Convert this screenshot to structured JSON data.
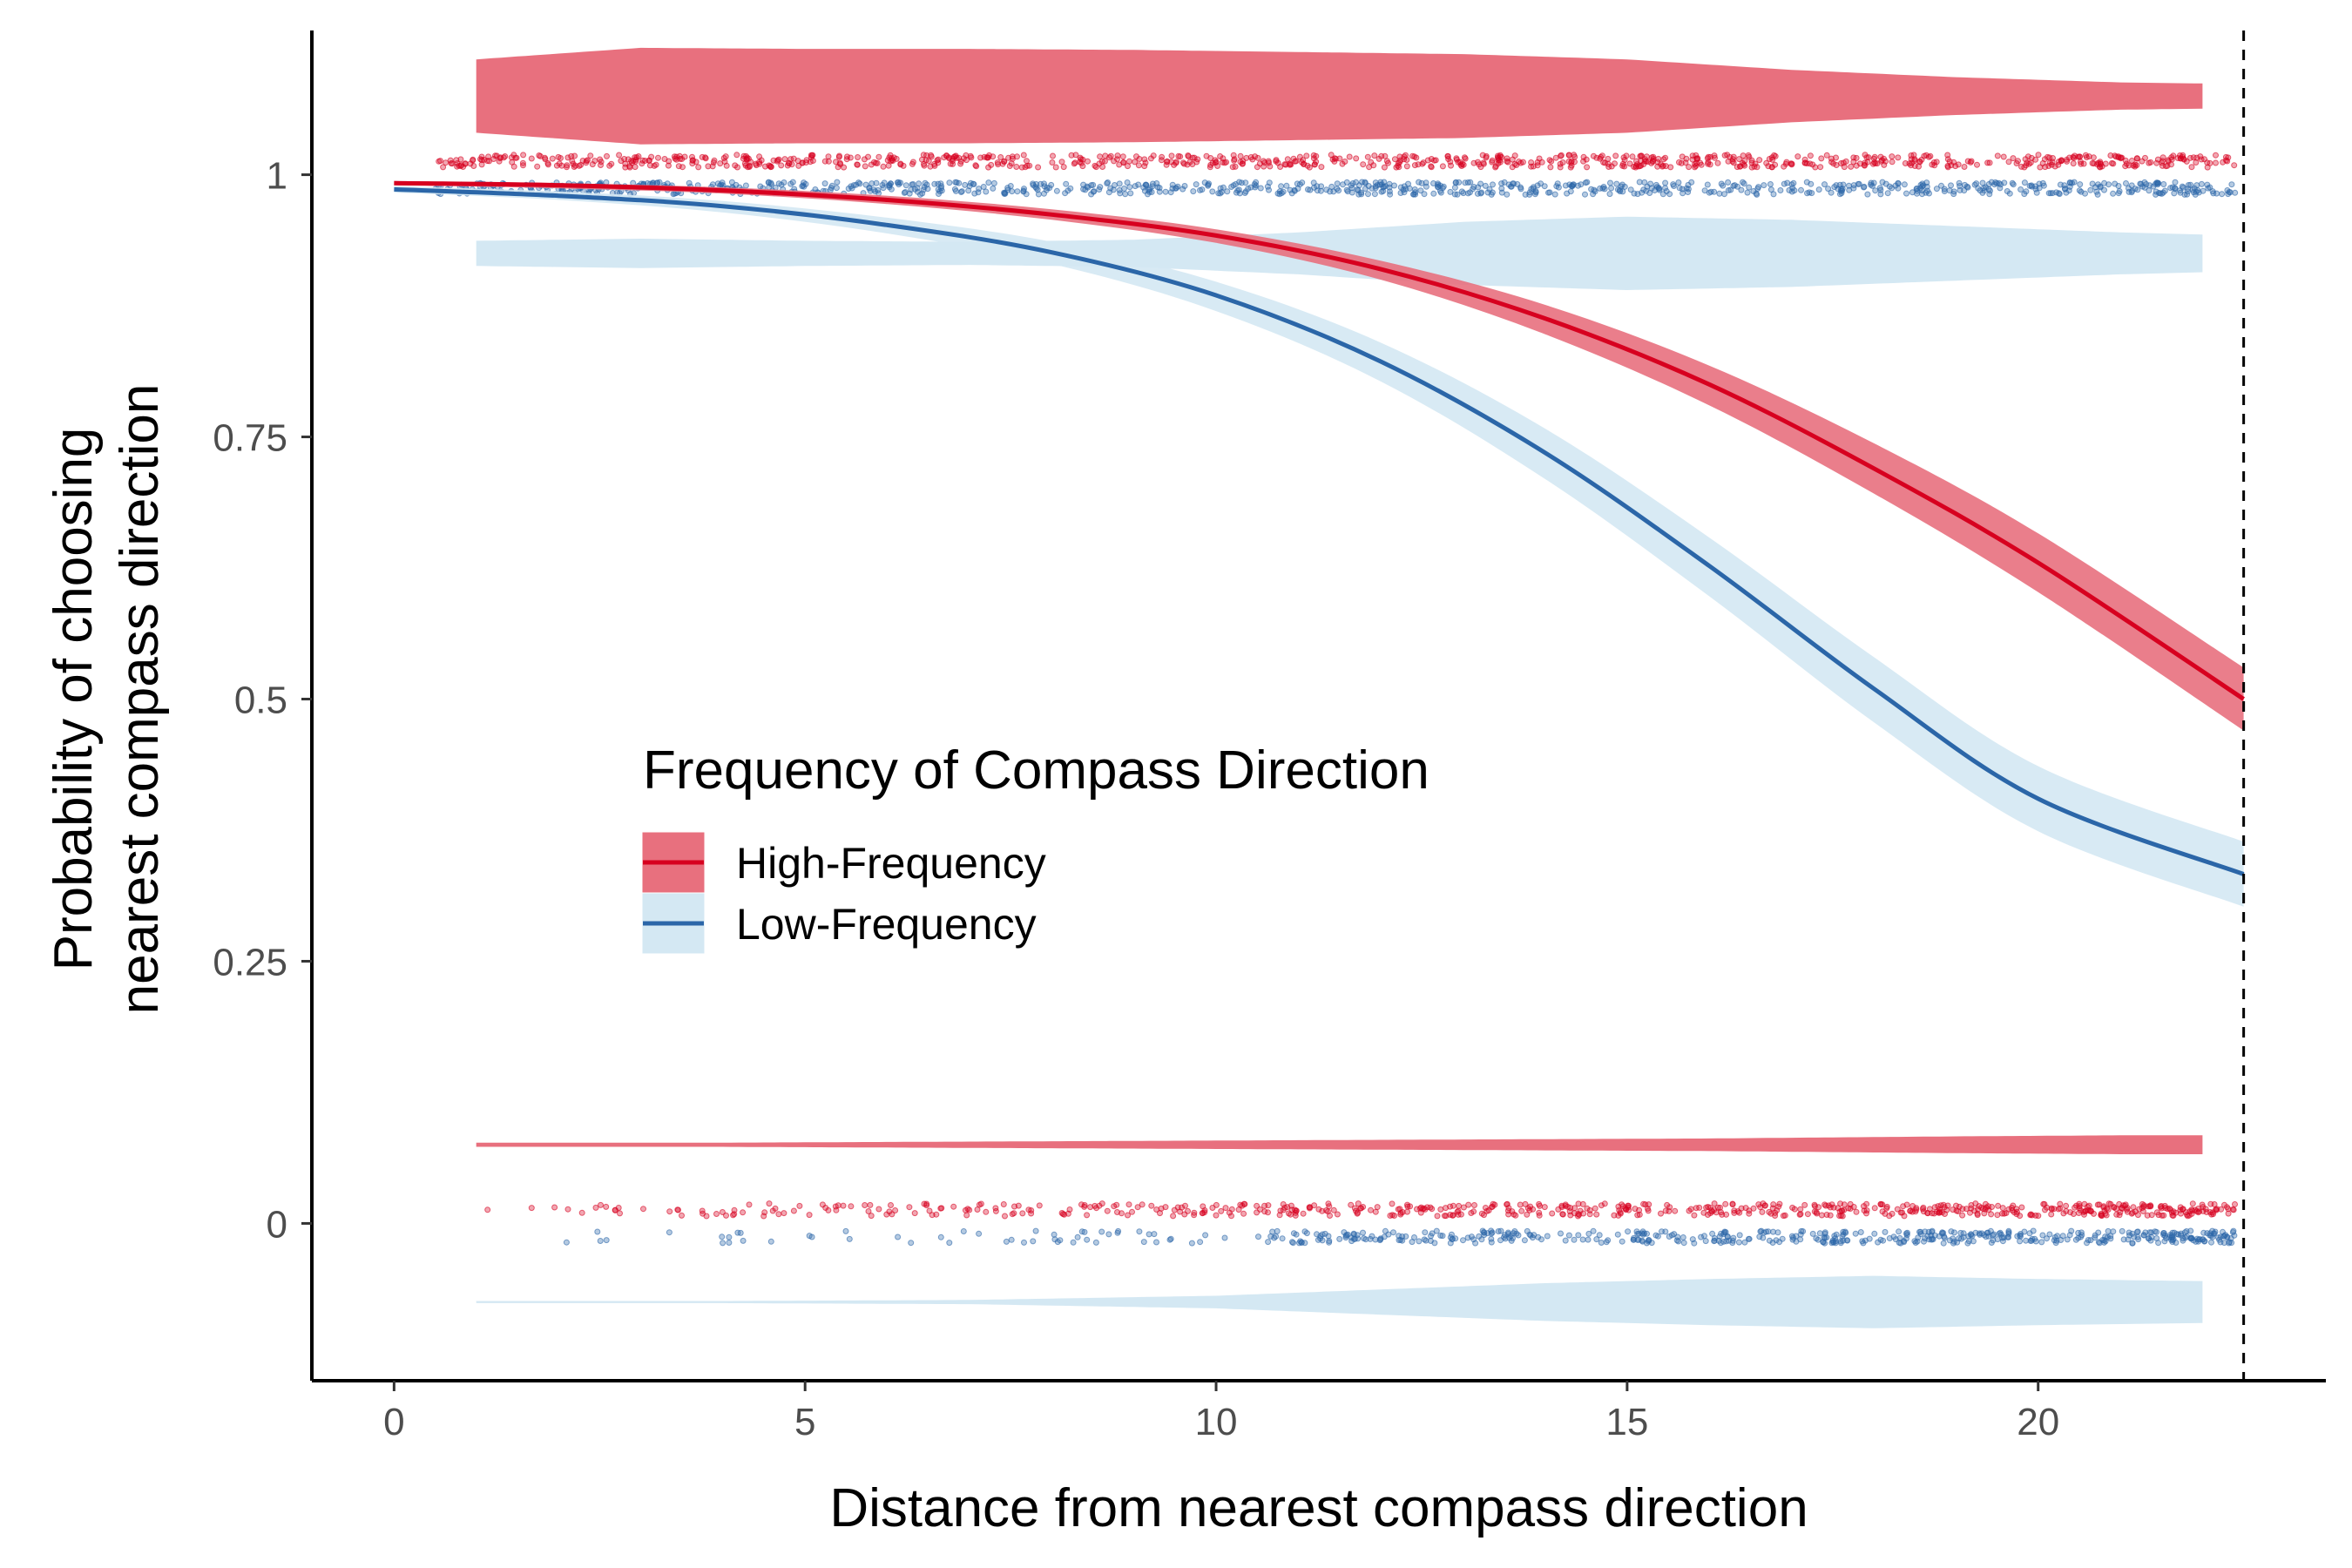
{
  "chart_data": {
    "type": "line",
    "xlabel": "Distance from nearest compass direction",
    "ylabel_lines": [
      "Probability of choosing",
      "nearest compass direction"
    ],
    "xlim": [
      -1,
      23.5
    ],
    "ylim": [
      -0.15,
      1.15
    ],
    "x_ticks": [
      0,
      5,
      10,
      15,
      20
    ],
    "x_tick_labels": [
      "0",
      "5",
      "10",
      "15",
      "20"
    ],
    "y_ticks": [
      0,
      0.25,
      0.5,
      0.75,
      1
    ],
    "y_tick_labels": [
      "0",
      "0.25",
      "0.5",
      "0.75",
      "1"
    ],
    "grid": false,
    "vline_x": 22.5,
    "legend": {
      "title": "Frequency of Compass Direction",
      "placement": "center-left"
    },
    "series": [
      {
        "name": "High-Frequency",
        "line_color": "#d7001f",
        "band_color": "#e8707e",
        "x": [
          0,
          2,
          4,
          6,
          8,
          10,
          12,
          14,
          16,
          18,
          20,
          22.5
        ],
        "y": [
          0.992,
          0.99,
          0.985,
          0.976,
          0.962,
          0.942,
          0.91,
          0.863,
          0.8,
          0.72,
          0.63,
          0.5
        ],
        "lo": [
          0.99,
          0.987,
          0.982,
          0.972,
          0.957,
          0.935,
          0.9,
          0.848,
          0.78,
          0.696,
          0.602,
          0.47
        ],
        "hi": [
          0.994,
          0.992,
          0.988,
          0.98,
          0.967,
          0.948,
          0.918,
          0.876,
          0.818,
          0.744,
          0.658,
          0.53
        ]
      },
      {
        "name": "Low-Frequency",
        "line_color": "#2b66a8",
        "band_color": "#d4e8f3",
        "x": [
          0,
          2,
          4,
          6,
          8,
          10,
          12,
          14,
          16,
          18,
          20,
          22.5
        ],
        "y": [
          0.986,
          0.98,
          0.97,
          0.952,
          0.926,
          0.885,
          0.822,
          0.735,
          0.627,
          0.51,
          0.405,
          0.333
        ],
        "lo": [
          0.983,
          0.976,
          0.964,
          0.944,
          0.915,
          0.87,
          0.803,
          0.71,
          0.598,
          0.478,
          0.374,
          0.302
        ],
        "hi": [
          0.989,
          0.984,
          0.975,
          0.959,
          0.936,
          0.898,
          0.84,
          0.758,
          0.654,
          0.54,
          0.436,
          0.364
        ]
      }
    ],
    "violins": [
      {
        "series": "High-Frequency",
        "color": "#e8707e",
        "center_y": 1.075,
        "x_range": [
          1,
          22
        ],
        "half_width_at": [
          [
            1,
            0.035
          ],
          [
            3,
            0.046
          ],
          [
            5,
            0.045
          ],
          [
            7,
            0.045
          ],
          [
            9,
            0.044
          ],
          [
            11,
            0.042
          ],
          [
            13,
            0.04
          ],
          [
            15,
            0.035
          ],
          [
            17,
            0.025
          ],
          [
            19,
            0.018
          ],
          [
            21,
            0.013
          ],
          [
            22,
            0.012
          ]
        ]
      },
      {
        "series": "Low-Frequency",
        "color": "#d4e8f3",
        "center_y": 0.925,
        "x_range": [
          1,
          22
        ],
        "half_width_at": [
          [
            1,
            0.012
          ],
          [
            3,
            0.014
          ],
          [
            5,
            0.012
          ],
          [
            7,
            0.011
          ],
          [
            9,
            0.013
          ],
          [
            11,
            0.02
          ],
          [
            13,
            0.03
          ],
          [
            15,
            0.035
          ],
          [
            17,
            0.032
          ],
          [
            19,
            0.026
          ],
          [
            21,
            0.02
          ],
          [
            22,
            0.018
          ]
        ]
      },
      {
        "series": "High-Frequency",
        "color": "#e8707e",
        "center_y": 0.075,
        "x_range": [
          1,
          22
        ],
        "half_width_at": [
          [
            1,
            0.002
          ],
          [
            4,
            0.002
          ],
          [
            7,
            0.003
          ],
          [
            10,
            0.004
          ],
          [
            13,
            0.005
          ],
          [
            16,
            0.006
          ],
          [
            19,
            0.008
          ],
          [
            21,
            0.009
          ],
          [
            22,
            0.009
          ]
        ]
      },
      {
        "series": "Low-Frequency",
        "color": "#d4e8f3",
        "center_y": -0.075,
        "x_range": [
          1,
          22
        ],
        "half_width_at": [
          [
            1,
            0.001
          ],
          [
            4,
            0.001
          ],
          [
            7,
            0.002
          ],
          [
            10,
            0.006
          ],
          [
            12,
            0.012
          ],
          [
            14,
            0.018
          ],
          [
            16,
            0.022
          ],
          [
            18,
            0.025
          ],
          [
            20,
            0.022
          ],
          [
            22,
            0.02
          ]
        ]
      }
    ],
    "jitter_strips": [
      {
        "series": "High-Frequency",
        "color": "#d7001f",
        "y": 1.013,
        "x_from": 0.5,
        "x_to": 22.4,
        "density": "high"
      },
      {
        "series": "Low-Frequency",
        "color": "#2b66a8",
        "y": 0.987,
        "x_from": 0.5,
        "x_to": 22.4,
        "density": "high"
      },
      {
        "series": "High-Frequency",
        "color": "#d7001f",
        "y": 0.013,
        "x_from": 0.5,
        "x_to": 22.4,
        "density": "increasing"
      },
      {
        "series": "Low-Frequency",
        "color": "#2b66a8",
        "y": -0.013,
        "x_from": 0.5,
        "x_to": 22.4,
        "density": "increasing"
      }
    ]
  }
}
